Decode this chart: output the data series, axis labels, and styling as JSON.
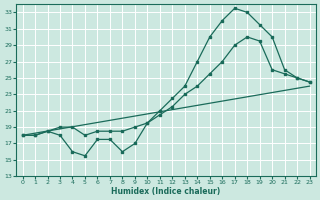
{
  "xlabel": "Humidex (Indice chaleur)",
  "bg_color": "#cce8e0",
  "grid_color": "#b0d8d0",
  "line_color": "#1a6b5a",
  "xlim": [
    -0.5,
    23.5
  ],
  "ylim": [
    13,
    34
  ],
  "yticks": [
    13,
    15,
    17,
    19,
    21,
    23,
    25,
    27,
    29,
    31,
    33
  ],
  "xticks": [
    0,
    1,
    2,
    3,
    4,
    5,
    6,
    7,
    8,
    9,
    10,
    11,
    12,
    13,
    14,
    15,
    16,
    17,
    18,
    19,
    20,
    21,
    22,
    23
  ],
  "line1_jagged": {
    "x": [
      0,
      1,
      2,
      3,
      4,
      5,
      6,
      7,
      8,
      9,
      10,
      11,
      12,
      13,
      14,
      15,
      16,
      17,
      18,
      19,
      20,
      21,
      22,
      23
    ],
    "y": [
      18,
      18,
      18.5,
      18,
      16,
      15.5,
      17.5,
      17.5,
      16,
      17,
      19.5,
      21,
      22.5,
      24,
      27,
      30,
      32,
      33.5,
      33,
      31.5,
      30,
      26,
      25,
      24.5
    ]
  },
  "line2_smooth": {
    "x": [
      0,
      1,
      2,
      3,
      4,
      5,
      6,
      7,
      8,
      9,
      10,
      11,
      12,
      13,
      14,
      15,
      16,
      17,
      18,
      19,
      20,
      21,
      22,
      23
    ],
    "y": [
      18,
      18,
      18.5,
      19,
      19,
      18,
      18.5,
      18.5,
      18.5,
      19,
      19.5,
      20.5,
      21.5,
      23,
      24,
      25.5,
      27,
      29,
      30,
      29.5,
      26,
      25.5,
      25,
      24.5
    ]
  },
  "line3_straight": {
    "x": [
      0,
      23
    ],
    "y": [
      18,
      24
    ]
  }
}
